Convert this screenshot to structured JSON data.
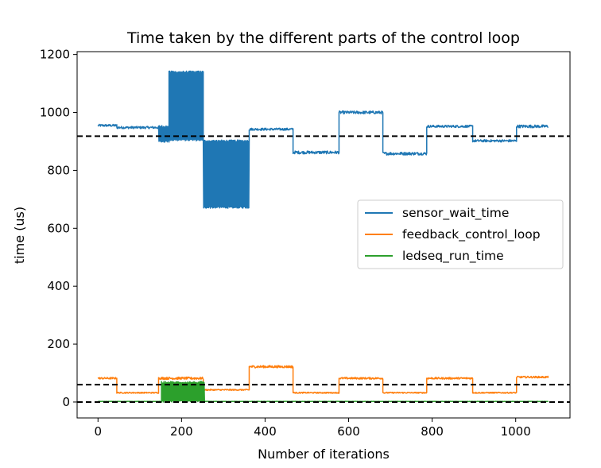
{
  "chart_data": {
    "type": "line",
    "title": "Time taken by the different parts of the control loop",
    "xlabel": "Number of iterations",
    "ylabel": "time (us)",
    "xlim": [
      -50,
      1130
    ],
    "ylim": [
      -55,
      1210
    ],
    "xticks": [
      0,
      200,
      400,
      600,
      800,
      1000
    ],
    "yticks": [
      0,
      200,
      400,
      600,
      800,
      1000,
      1200
    ],
    "grid": false,
    "legend_position": "center-right",
    "reference_lines": [
      {
        "y": 918,
        "style": "dashed",
        "color": "#000000"
      },
      {
        "y": 60,
        "style": "dashed",
        "color": "#000000"
      },
      {
        "y": 0,
        "style": "dashed",
        "color": "#000000"
      }
    ],
    "series": [
      {
        "name": "sensor_wait_time",
        "color": "#1f77b4",
        "segments": [
          {
            "x_start": 0,
            "x_end": 45,
            "level": 955,
            "noise": 4
          },
          {
            "x_start": 45,
            "x_end": 145,
            "level": 948,
            "noise": 4
          },
          {
            "x_start": 145,
            "x_end": 170,
            "level": 925,
            "oscillate_low": 900,
            "oscillate_high": 952
          },
          {
            "x_start": 170,
            "x_end": 252,
            "level": 1020,
            "oscillate_low": 905,
            "oscillate_high": 1140
          },
          {
            "x_start": 252,
            "x_end": 362,
            "level": 790,
            "oscillate_low": 672,
            "oscillate_high": 902
          },
          {
            "x_start": 362,
            "x_end": 467,
            "level": 942,
            "noise": 4
          },
          {
            "x_start": 467,
            "x_end": 577,
            "level": 862,
            "noise": 5
          },
          {
            "x_start": 577,
            "x_end": 682,
            "level": 1000,
            "noise": 5
          },
          {
            "x_start": 682,
            "x_end": 787,
            "level": 858,
            "noise": 5
          },
          {
            "x_start": 787,
            "x_end": 897,
            "level": 952,
            "noise": 4
          },
          {
            "x_start": 897,
            "x_end": 1002,
            "level": 902,
            "noise": 4
          },
          {
            "x_start": 1002,
            "x_end": 1078,
            "level": 952,
            "noise": 5
          }
        ]
      },
      {
        "name": "feedback_control_loop",
        "color": "#ff7f0e",
        "segments": [
          {
            "x_start": 0,
            "x_end": 45,
            "level": 82,
            "noise": 3
          },
          {
            "x_start": 45,
            "x_end": 145,
            "level": 32,
            "noise": 2
          },
          {
            "x_start": 145,
            "x_end": 252,
            "level": 82,
            "noise": 4
          },
          {
            "x_start": 252,
            "x_end": 362,
            "level": 42,
            "noise": 2
          },
          {
            "x_start": 362,
            "x_end": 467,
            "level": 122,
            "noise": 4
          },
          {
            "x_start": 467,
            "x_end": 577,
            "level": 32,
            "noise": 2
          },
          {
            "x_start": 577,
            "x_end": 682,
            "level": 82,
            "noise": 3
          },
          {
            "x_start": 682,
            "x_end": 787,
            "level": 32,
            "noise": 2
          },
          {
            "x_start": 787,
            "x_end": 897,
            "level": 82,
            "noise": 3
          },
          {
            "x_start": 897,
            "x_end": 1002,
            "level": 32,
            "noise": 2
          },
          {
            "x_start": 1002,
            "x_end": 1078,
            "level": 86,
            "noise": 3
          }
        ]
      },
      {
        "name": "ledseq_run_time",
        "color": "#2ca02c",
        "segments": [
          {
            "x_start": 0,
            "x_end": 152,
            "level": 2,
            "noise": 0.5
          },
          {
            "x_start": 152,
            "x_end": 255,
            "level": 30,
            "oscillate_low": 2,
            "oscillate_high": 68
          },
          {
            "x_start": 255,
            "x_end": 1078,
            "level": 2,
            "noise": 0.5
          }
        ]
      }
    ]
  }
}
